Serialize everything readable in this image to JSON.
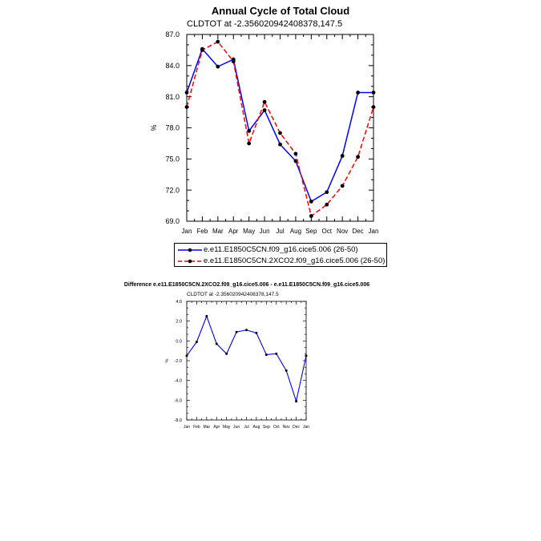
{
  "page": {
    "title": "Annual Cycle of Total Cloud",
    "subtitle": "CLDTOT at -2.356020942408378,147.5",
    "diff_title": "Difference e.e11.E1850C5CN.2XCO2.f09_g16.cice5.006 - e.e11.E1850C5CN.f09_g16.cice5.006",
    "diff_subtitle": "CLDTOT at -2.356020942408378,147.5"
  },
  "legend": [
    {
      "label": "e.e11.E1850C5CN.f09_g16.cice5.006 (26-50)",
      "color": "#0000ff",
      "dash": "solid"
    },
    {
      "label": "e.e11.E1850C5CN.2XCO2.f09_g16.cice5.006 (26-50)",
      "color": "#ff0000",
      "dash": "dashed"
    }
  ],
  "chart_data": [
    {
      "type": "line",
      "title": "Annual Cycle of Total Cloud",
      "subtitle": "CLDTOT at -2.356020942408378,147.5",
      "ylabel": "%",
      "xlabel": "",
      "categories": [
        "Jan",
        "Feb",
        "Mar",
        "Apr",
        "May",
        "Jun",
        "Jul",
        "Aug",
        "Sep",
        "Oct",
        "Nov",
        "Dec",
        "Jan"
      ],
      "ylim": [
        69.0,
        87.0
      ],
      "yticks": [
        "69.0",
        "72.0",
        "75.0",
        "78.0",
        "81.0",
        "84.0",
        "87.0"
      ],
      "series": [
        {
          "name": "e.e11.E1850C5CN.f09_g16.cice5.006 (26-50)",
          "color": "#0000ff",
          "dash": "solid",
          "values": [
            81.4,
            85.6,
            83.9,
            84.6,
            77.7,
            79.7,
            76.4,
            74.8,
            70.9,
            71.8,
            75.3,
            81.4,
            81.4
          ]
        },
        {
          "name": "e.e11.E1850C5CN.2XCO2.f09_g16.cice5.006 (26-50)",
          "color": "#ff0000",
          "dash": "dashed",
          "values": [
            80.0,
            85.5,
            86.3,
            84.4,
            76.5,
            80.5,
            77.5,
            75.5,
            69.5,
            70.6,
            72.4,
            75.2,
            80.0
          ]
        }
      ],
      "legend_position": "bottom",
      "grid": false
    },
    {
      "type": "line",
      "title": "Difference e.e11.E1850C5CN.2XCO2.f09_g16.cice5.006 - e.e11.E1850C5CN.f09_g16.cice5.006",
      "subtitle": "CLDTOT at -2.356020942408378,147.5",
      "ylabel": "%",
      "xlabel": "",
      "categories": [
        "Jan",
        "Feb",
        "Mar",
        "Apr",
        "May",
        "Jun",
        "Jul",
        "Aug",
        "Sep",
        "Oct",
        "Nov",
        "Dec",
        "Jan"
      ],
      "ylim": [
        -8.0,
        4.0
      ],
      "yticks": [
        "-8.0",
        "-6.0",
        "-4.0",
        "-2.0",
        "0.0",
        "2.0",
        "4.0"
      ],
      "series": [
        {
          "color": "#0000ff",
          "dash": "solid",
          "values": [
            -1.5,
            -0.1,
            2.5,
            -0.3,
            -1.3,
            0.9,
            1.1,
            0.8,
            -1.4,
            -1.3,
            -3.0,
            -6.1,
            -1.5
          ]
        }
      ],
      "grid": false
    }
  ]
}
